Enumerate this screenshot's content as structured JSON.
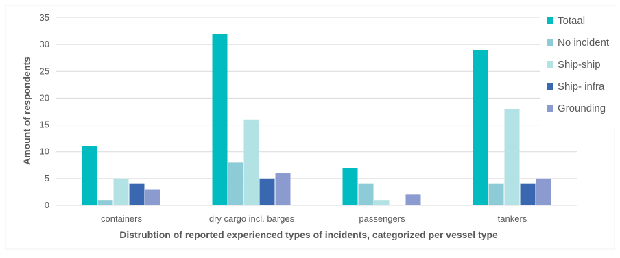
{
  "chart_data": {
    "type": "bar",
    "title": "",
    "xlabel": "Distrubtion of reported experienced types of incidents, categorized per vessel type",
    "ylabel": "Amount of respondents",
    "categories": [
      "containers",
      "dry cargo incl. barges",
      "passengers",
      "tankers"
    ],
    "ylim": [
      0,
      35
    ],
    "yticks": [
      0,
      5,
      10,
      15,
      20,
      25,
      30,
      35
    ],
    "grid": true,
    "legend_position": "right",
    "series": [
      {
        "name": "Totaal",
        "color": "#00BCC1",
        "values": [
          11,
          32,
          7,
          29
        ]
      },
      {
        "name": "No incident",
        "color": "#8DCBD6",
        "values": [
          1,
          8,
          4,
          4
        ]
      },
      {
        "name": "Ship-ship",
        "color": "#B2E2E4",
        "values": [
          5,
          16,
          1,
          18
        ]
      },
      {
        "name": "Ship- infra",
        "color": "#3A68B0",
        "values": [
          4,
          5,
          0,
          4
        ]
      },
      {
        "name": "Grounding",
        "color": "#8B9BCF",
        "values": [
          3,
          6,
          2,
          5
        ]
      }
    ]
  }
}
